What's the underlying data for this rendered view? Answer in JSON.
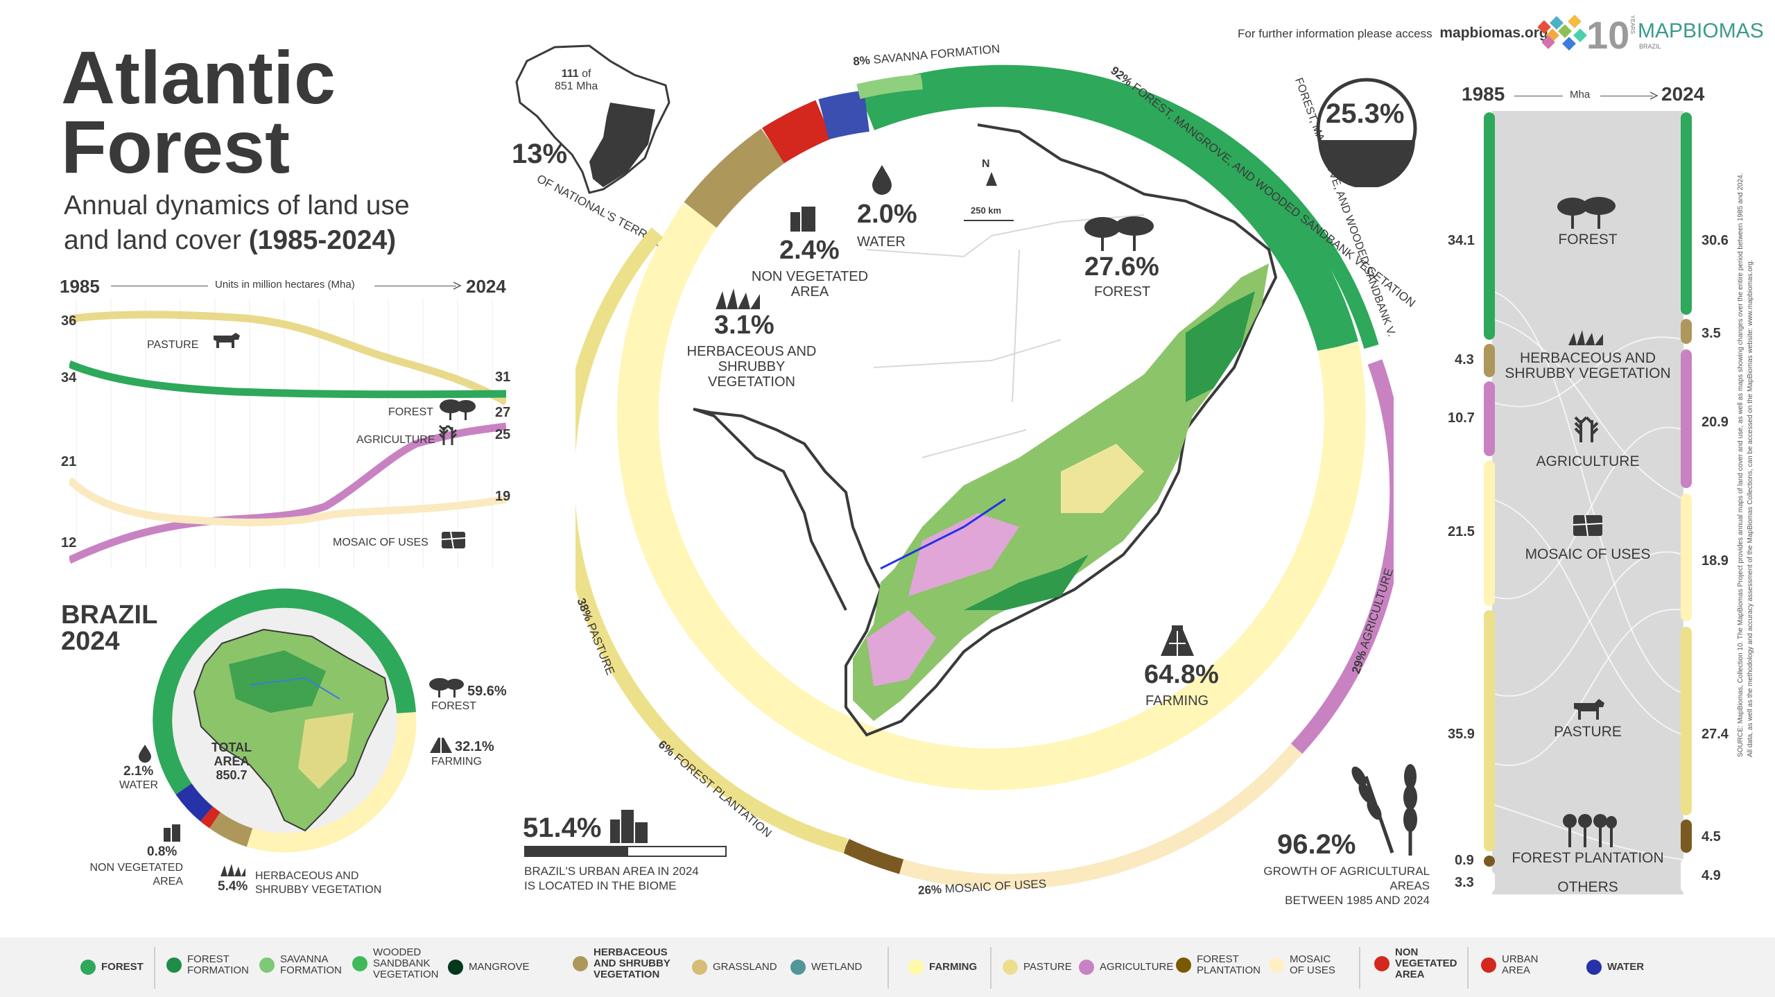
{
  "header": {
    "info_text": "For further information please access",
    "info_link": "mapbiomas.org",
    "logo_years": "10",
    "logo_years_word": "YEARS",
    "logo_name": "MAPBIOMAS",
    "logo_country": "BRAZIL"
  },
  "title": {
    "line1": "Atlantic",
    "line2": "Forest",
    "subtitle1": "Annual dynamics of land use",
    "subtitle2": "and land cover",
    "period": "(1985-2024)"
  },
  "territory": {
    "area_value": "111",
    "area_of": "of",
    "area_total": "851 Mha",
    "percent": "13%",
    "caption": "OF NATIONAL'S TERRITORY"
  },
  "line_chart": {
    "start_year": "1985",
    "end_year": "2024",
    "units_label": "Units in million hectares (Mha)",
    "series": [
      {
        "name": "PASTURE",
        "color": "#e9d98a",
        "start": "36",
        "end": "27"
      },
      {
        "name": "FOREST",
        "color": "#2ea85a",
        "start": "34",
        "end": "31"
      },
      {
        "name": "AGRICULTURE",
        "color": "#c882c2",
        "start": "12",
        "end": "25"
      },
      {
        "name": "MOSAIC OF USES",
        "color": "#fbe9c0",
        "start": "21",
        "end": "19"
      }
    ]
  },
  "brazil": {
    "title1": "BRAZIL",
    "title2": "2024",
    "total_label1": "TOTAL",
    "total_label2": "AREA",
    "total_value": "850.7",
    "items": [
      {
        "value": "59.6%",
        "label": "FOREST"
      },
      {
        "value": "32.1%",
        "label": "FARMING"
      },
      {
        "value": "2.1%",
        "label": "WATER"
      },
      {
        "value": "0.8%",
        "label": "NON VEGETATED AREA"
      },
      {
        "value": "5.4%",
        "label": "HERBACEOUS AND SHRUBBY VEGETATION"
      }
    ]
  },
  "main_ring": {
    "center_stats": [
      {
        "value": "2.0%",
        "label": "WATER"
      },
      {
        "value": "2.4%",
        "label": "NON VEGETATED AREA"
      },
      {
        "value": "3.1%",
        "label": "HERBACEOUS AND SHRUBBY VEGETATION"
      },
      {
        "value": "27.6%",
        "label": "FOREST"
      },
      {
        "value": "64.8%",
        "label": "FARMING"
      }
    ],
    "outer_labels": [
      {
        "value": "8%",
        "label": "SAVANNA FORMATION"
      },
      {
        "value": "92%",
        "label": "FOREST, MANGROVE, AND WOODED SANDBANK VEGETATION"
      },
      {
        "value": "29%",
        "label": "AGRICULTURE"
      },
      {
        "value": "26%",
        "label": "MOSAIC OF USES"
      },
      {
        "value": "6%",
        "label": "FOREST PLANTATION"
      },
      {
        "value": "38%",
        "label": "PASTURE"
      }
    ],
    "scale_label": "250 km",
    "north": "N"
  },
  "sandbank": {
    "value": "25.3%",
    "caption": "FOREST, MANGROVE, AND WOODED SANDBANK V."
  },
  "urban": {
    "value": "51.4%",
    "caption1": "BRAZIL'S URBAN AREA IN 2024",
    "caption2": "IS LOCATED IN THE BIOME",
    "fraction": 0.514
  },
  "agri_growth": {
    "value": "96.2%",
    "caption1": "GROWTH OF AGRICULTURAL AREAS",
    "caption2": "BETWEEN 1985 AND 2024"
  },
  "sankey": {
    "start_year": "1985",
    "end_year": "2024",
    "unit": "Mha",
    "rows": [
      {
        "label": "FOREST",
        "left": "34.1",
        "right": "30.6",
        "color": "#2ea85a"
      },
      {
        "label": "HERBACEOUS AND SHRUBBY VEGETATION",
        "left": "4.3",
        "right": "3.5",
        "color": "#ad975a"
      },
      {
        "label": "AGRICULTURE",
        "left": "10.7",
        "right": "20.9",
        "color": "#c882c2"
      },
      {
        "label": "MOSAIC OF USES",
        "left": "21.5",
        "right": "18.9",
        "color": "#fff3b5"
      },
      {
        "label": "PASTURE",
        "left": "35.9",
        "right": "27.4",
        "color": "#ede08a"
      },
      {
        "label": "FOREST PLANTATION",
        "left": "0.9",
        "right": "4.5",
        "color": "#7a5a22"
      },
      {
        "label": "OTHERS",
        "left": "3.3",
        "right": "4.9",
        "color": "#ffffff"
      }
    ]
  },
  "source": {
    "line1": "SOURCE: MapBiomas, Collection 10. The MapBiomas Project provides annual maps of land cover and use, as well as maps showing changes over the entire period between 1985 and 2024.",
    "line2": "All data, as well as the methodology and accuracy assessment of the MapBiomas Collections, can be accessed on the MapBiomas website: www.mapbiomas.org."
  },
  "legend": [
    {
      "label": "FOREST",
      "color": "#2ea85a",
      "bold": true
    },
    {
      "label": "FOREST FORMATION",
      "color": "#1f8d49",
      "bold": false
    },
    {
      "label": "SAVANNA FORMATION",
      "color": "#7dc975",
      "bold": false
    },
    {
      "label": "WOODED SANDBANK VEGETATION",
      "color": "#3fb95a",
      "bold": false
    },
    {
      "label": "MANGROVE",
      "color": "#04381d",
      "bold": false
    },
    {
      "label": "HERBACEOUS AND SHRUBBY VEGETATION",
      "color": "#ad975a",
      "bold": true
    },
    {
      "label": "GRASSLAND",
      "color": "#d6bc74",
      "bold": false
    },
    {
      "label": "WETLAND",
      "color": "#519799",
      "bold": false
    },
    {
      "label": "FARMING",
      "color": "#fffaa8",
      "bold": true
    },
    {
      "label": "PASTURE",
      "color": "#edde8e",
      "bold": false
    },
    {
      "label": "AGRICULTURE",
      "color": "#c882c2",
      "bold": false
    },
    {
      "label": "FOREST PLANTATION",
      "color": "#7a5900",
      "bold": false
    },
    {
      "label": "MOSAIC OF USES",
      "color": "#ffefc3",
      "bold": false
    },
    {
      "label": "NON VEGETATED AREA",
      "color": "#d4271e",
      "bold": true
    },
    {
      "label": "URBAN AREA",
      "color": "#d4271e",
      "bold": false
    },
    {
      "label": "WATER",
      "color": "#2532e4",
      "bold": true
    }
  ]
}
